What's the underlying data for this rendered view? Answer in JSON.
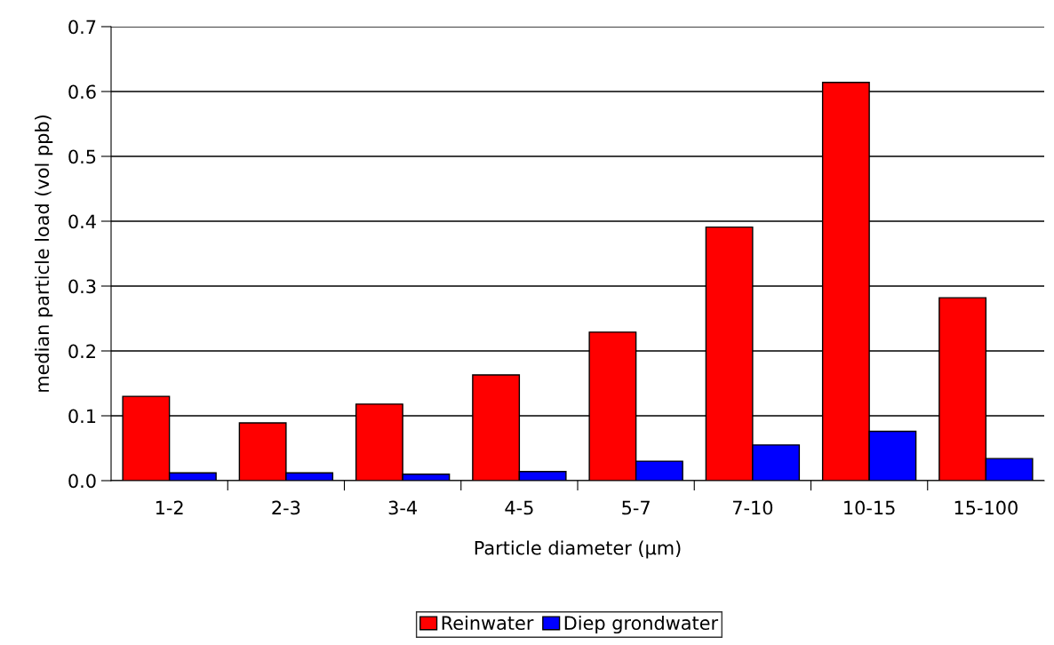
{
  "chart_data": {
    "type": "bar",
    "xlabel": "Particle diameter (µm)",
    "ylabel": "median particle load (vol ppb)",
    "categories": [
      "1-2",
      "2-3",
      "3-4",
      "4-5",
      "5-7",
      "7-10",
      "10-15",
      "15-100"
    ],
    "series": [
      {
        "name": "Reinwater",
        "color": "#ff0000",
        "values": [
          0.13,
          0.089,
          0.118,
          0.163,
          0.229,
          0.391,
          0.614,
          0.282
        ]
      },
      {
        "name": "Diep grondwater",
        "color": "#0000ff",
        "values": [
          0.012,
          0.012,
          0.01,
          0.014,
          0.03,
          0.055,
          0.076,
          0.034
        ]
      }
    ],
    "ylim": [
      0,
      0.7
    ],
    "yticks": [
      {
        "value": 0,
        "label": "0.0"
      },
      {
        "value": 0.1,
        "label": "0.1"
      },
      {
        "value": 0.2,
        "label": "0.2"
      },
      {
        "value": 0.3,
        "label": "0.3"
      },
      {
        "value": 0.4,
        "label": "0.4"
      },
      {
        "value": 0.5,
        "label": "0.5"
      },
      {
        "value": 0.6,
        "label": "0.6"
      },
      {
        "value": 0.7,
        "label": "0.7"
      }
    ],
    "grid": "y",
    "legend": "bottom"
  }
}
